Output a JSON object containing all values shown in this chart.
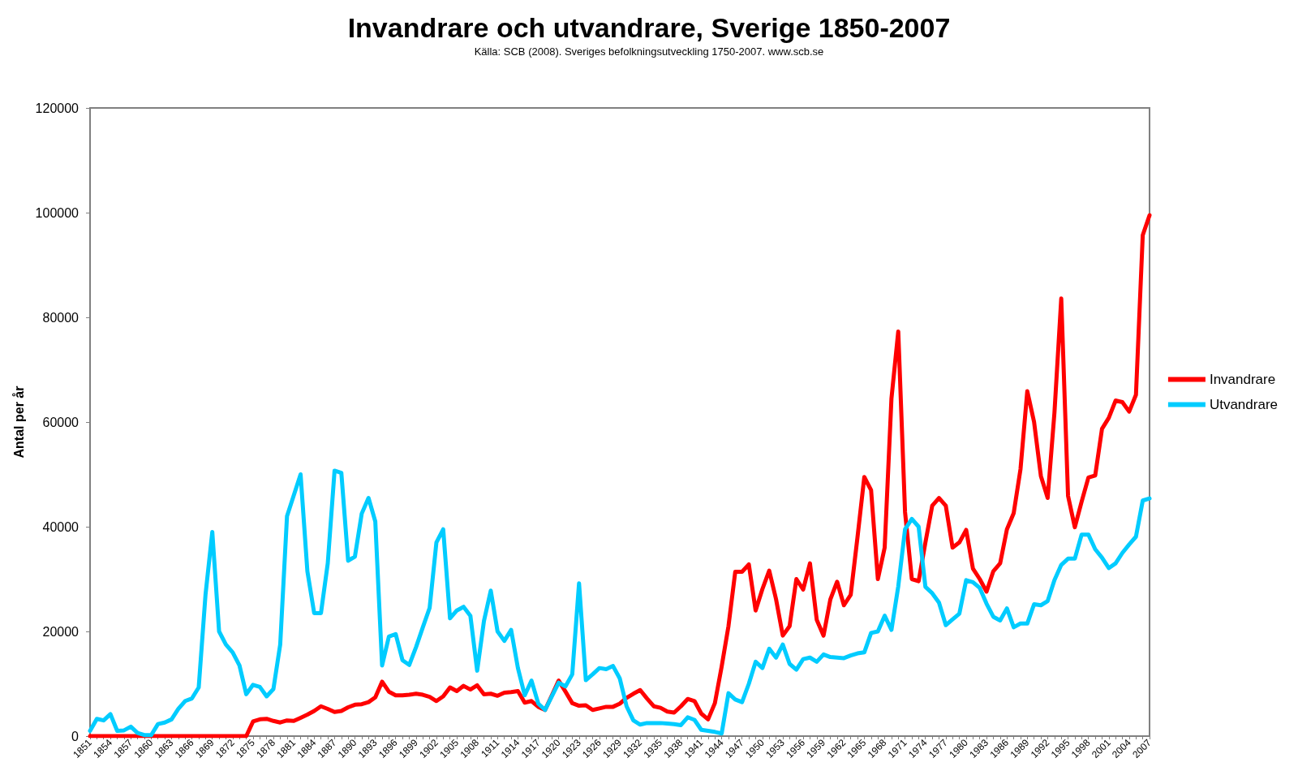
{
  "chart_data": {
    "type": "line",
    "title": "Invandrare och utvandrare, Sverige 1850-2007",
    "subtitle": "Källa: SCB (2008). Sveriges befolkningsutveckling 1750-2007. www.scb.se",
    "ylabel": "Antal per år",
    "categories": [
      "1851",
      null,
      null,
      "1854",
      null,
      null,
      "1857",
      null,
      null,
      "1860",
      null,
      null,
      "1863",
      null,
      null,
      "1866",
      null,
      null,
      "1869",
      null,
      null,
      "1872",
      null,
      null,
      "1875",
      null,
      null,
      "1878",
      null,
      null,
      "1881",
      null,
      null,
      "1884",
      null,
      null,
      "1887",
      null,
      null,
      "1890",
      null,
      null,
      "1893",
      null,
      null,
      "1896",
      null,
      null,
      "1899",
      null,
      null,
      "1902",
      null,
      null,
      "1905",
      null,
      null,
      "1908",
      null,
      null,
      "1911",
      null,
      null,
      "1914",
      null,
      null,
      "1917",
      null,
      null,
      "1920",
      null,
      null,
      "1923",
      null,
      null,
      "1926",
      null,
      null,
      "1929",
      null,
      null,
      "1932",
      null,
      null,
      "1935",
      null,
      null,
      "1938",
      null,
      null,
      "1941",
      null,
      null,
      "1944",
      null,
      null,
      "1947",
      null,
      null,
      "1950",
      null,
      null,
      "1953",
      null,
      null,
      "1956",
      null,
      null,
      "1959",
      null,
      null,
      "1962",
      null,
      null,
      "1965",
      null,
      null,
      "1968",
      null,
      null,
      "1971",
      null,
      null,
      "1974",
      null,
      null,
      "1977",
      null,
      null,
      "1980",
      null,
      null,
      "1983",
      null,
      null,
      "1986",
      null,
      null,
      "1989",
      null,
      null,
      "1992",
      null,
      null,
      "1995",
      null,
      null,
      "1998",
      null,
      null,
      "2001",
      null,
      null,
      "2004",
      null,
      null,
      "2007"
    ],
    "series": [
      {
        "name": "Invandrare",
        "color": "#ff0000",
        "values": [
          0,
          0,
          0,
          0,
          0,
          0,
          0,
          0,
          0,
          0,
          0,
          0,
          0,
          0,
          0,
          0,
          0,
          0,
          0,
          0,
          0,
          0,
          0,
          0,
          2800,
          3200,
          3300,
          2900,
          2600,
          3000,
          2900,
          3500,
          4100,
          4800,
          5700,
          5200,
          4600,
          4800,
          5500,
          6000,
          6100,
          6500,
          7400,
          10400,
          8500,
          7800,
          7800,
          7900,
          8100,
          7900,
          7500,
          6700,
          7600,
          9300,
          8600,
          9600,
          8900,
          9700,
          8000,
          8100,
          7700,
          8300,
          8400,
          8600,
          6400,
          6700,
          5600,
          5000,
          7800,
          10600,
          8500,
          6300,
          5800,
          5900,
          5000,
          5300,
          5600,
          5600,
          6200,
          7300,
          8100,
          8800,
          7200,
          5700,
          5400,
          4700,
          4500,
          5700,
          7100,
          6700,
          4300,
          3200,
          6300,
          13300,
          21000,
          31400,
          31400,
          32800,
          24000,
          28100,
          31600,
          26200,
          19200,
          21000,
          30000,
          28000,
          33000,
          22200,
          19200,
          26100,
          29500,
          25000,
          27000,
          38000,
          49500,
          47000,
          30000,
          36000,
          64500,
          77300,
          42800,
          30000,
          29600,
          37000,
          44000,
          45500,
          44000,
          36000,
          37000,
          39400,
          32000,
          30000,
          27600,
          31500,
          33000,
          39500,
          42600,
          51000,
          65900,
          60000,
          49700,
          45500,
          61800,
          83600,
          45900,
          39900,
          44800,
          49400,
          49800,
          58700,
          60800,
          64100,
          63800,
          62000,
          65200,
          95700,
          99500
        ]
      },
      {
        "name": "Utvandrare",
        "color": "#00ccff",
        "values": [
          1000,
          3300,
          3000,
          4200,
          1000,
          1100,
          1800,
          600,
          200,
          200,
          2300,
          2600,
          3200,
          5200,
          6700,
          7200,
          9300,
          27000,
          39000,
          20000,
          17500,
          16000,
          13500,
          8000,
          9800,
          9400,
          7600,
          9000,
          17500,
          42000,
          46000,
          50000,
          31500,
          23500,
          23500,
          33000,
          50700,
          50300,
          33500,
          34300,
          42500,
          45500,
          41000,
          13500,
          19000,
          19500,
          14500,
          13600,
          17000,
          20800,
          24500,
          37000,
          39500,
          22500,
          24000,
          24700,
          23000,
          12500,
          22000,
          27800,
          20000,
          18200,
          20300,
          13000,
          7800,
          10600,
          6200,
          5000,
          7600,
          10200,
          9500,
          11800,
          29200,
          10700,
          11800,
          13000,
          12800,
          13400,
          11000,
          5700,
          3000,
          2200,
          2500,
          2500,
          2500,
          2400,
          2300,
          2100,
          3600,
          3100,
          1200,
          1000,
          800,
          500,
          8200,
          7000,
          6500,
          10000,
          14200,
          13000,
          16700,
          15000,
          17500,
          13800,
          12700,
          14700,
          15000,
          14200,
          15600,
          15100,
          15000,
          14900,
          15400,
          15800,
          16000,
          19700,
          20000,
          23000,
          20300,
          28600,
          39500,
          41500,
          40000,
          28500,
          27300,
          25500,
          21200,
          22300,
          23400,
          29800,
          29400,
          28300,
          25300,
          22800,
          22100,
          24400,
          20800,
          21500,
          21500,
          25200,
          25000,
          25800,
          29800,
          32700,
          33900,
          33900,
          38500,
          38500,
          35700,
          34100,
          32100,
          33000,
          35000,
          36600,
          38100,
          45000,
          45400
        ]
      }
    ],
    "ylim": [
      0,
      120000
    ],
    "yticks": [
      0,
      20000,
      40000,
      60000,
      80000,
      100000,
      120000
    ],
    "grid": false,
    "legend": "right",
    "marker": "none"
  }
}
